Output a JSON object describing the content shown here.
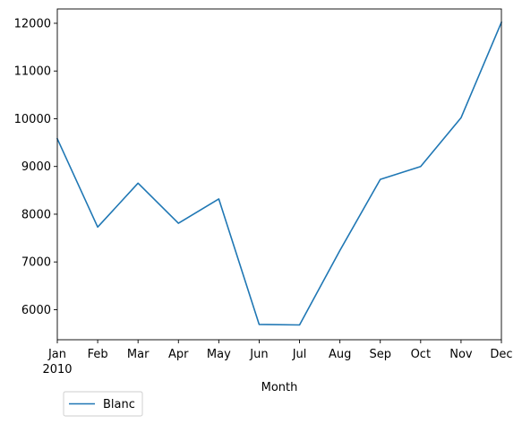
{
  "chart_data": {
    "type": "line",
    "title": "",
    "xlabel": "Month",
    "ylabel": "",
    "categories": [
      "Jan",
      "Feb",
      "Mar",
      "Apr",
      "May",
      "Jun",
      "Jul",
      "Aug",
      "Sep",
      "Oct",
      "Nov",
      "Dec"
    ],
    "year_label": "2010",
    "yticks": [
      6000,
      7000,
      8000,
      9000,
      10000,
      11000,
      12000
    ],
    "ylim": [
      5370,
      12300
    ],
    "grid": false,
    "legend_position": "below-left",
    "series": [
      {
        "name": "Blanc",
        "color": "#1f77b4",
        "values": [
          9580,
          7730,
          8650,
          7810,
          8320,
          5690,
          5680,
          7240,
          8730,
          9000,
          10020,
          12020
        ]
      }
    ]
  }
}
